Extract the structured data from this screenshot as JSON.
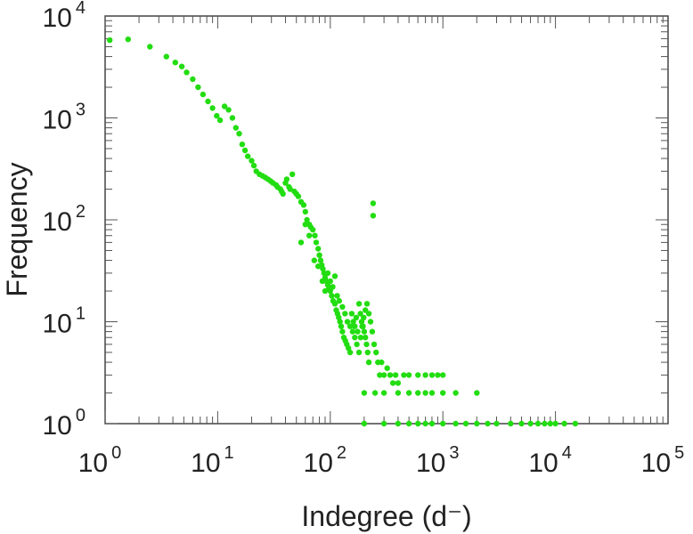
{
  "chart_data": {
    "type": "scatter",
    "xlabel": "Indegree (d⁻)",
    "ylabel": "Frequency",
    "x_scale": "log",
    "y_scale": "log",
    "xlim": [
      1,
      100000
    ],
    "ylim": [
      1,
      10000
    ],
    "x_ticks": [
      {
        "base": "10",
        "exp": "0",
        "value": 1
      },
      {
        "base": "10",
        "exp": "1",
        "value": 10
      },
      {
        "base": "10",
        "exp": "2",
        "value": 100
      },
      {
        "base": "10",
        "exp": "3",
        "value": 1000
      },
      {
        "base": "10",
        "exp": "4",
        "value": 10000
      },
      {
        "base": "10",
        "exp": "5",
        "value": 100000
      }
    ],
    "y_ticks": [
      {
        "base": "10",
        "exp": "0",
        "value": 1
      },
      {
        "base": "10",
        "exp": "1",
        "value": 10
      },
      {
        "base": "10",
        "exp": "2",
        "value": 100
      },
      {
        "base": "10",
        "exp": "3",
        "value": 1000
      },
      {
        "base": "10",
        "exp": "4",
        "value": 10000
      }
    ],
    "grid": false,
    "marker_color": "#22dd11",
    "series": [
      {
        "points": [
          [
            1.1,
            5800
          ],
          [
            1.6,
            5900
          ],
          [
            2.5,
            5000
          ],
          [
            3.5,
            4000
          ],
          [
            4.2,
            3500
          ],
          [
            4.8,
            3200
          ],
          [
            5.3,
            2800
          ],
          [
            6,
            2400
          ],
          [
            6.7,
            2000
          ],
          [
            7.4,
            1700
          ],
          [
            8.2,
            1450
          ],
          [
            9,
            1250
          ],
          [
            9.8,
            1050
          ],
          [
            10.5,
            950
          ],
          [
            11.5,
            1300
          ],
          [
            12.5,
            1200
          ],
          [
            13.5,
            1000
          ],
          [
            14.5,
            800
          ],
          [
            15.5,
            700
          ],
          [
            16.5,
            550
          ],
          [
            17.5,
            480
          ],
          [
            18.5,
            420
          ],
          [
            20,
            380
          ],
          [
            21,
            340
          ],
          [
            22,
            300
          ],
          [
            23.5,
            280
          ],
          [
            25,
            270
          ],
          [
            26.5,
            260
          ],
          [
            28,
            250
          ],
          [
            29.5,
            240
          ],
          [
            31,
            230
          ],
          [
            33,
            220
          ],
          [
            34,
            210
          ],
          [
            36,
            200
          ],
          [
            37,
            190
          ],
          [
            38,
            180
          ],
          [
            40,
            230
          ],
          [
            41,
            250
          ],
          [
            43,
            210
          ],
          [
            44,
            200
          ],
          [
            46,
            280
          ],
          [
            48,
            190
          ],
          [
            50,
            180
          ],
          [
            52,
            170
          ],
          [
            55,
            150
          ],
          [
            58,
            140
          ],
          [
            60,
            120
          ],
          [
            62,
            100
          ],
          [
            65,
            90
          ],
          [
            67,
            85
          ],
          [
            70,
            80
          ],
          [
            73,
            70
          ],
          [
            75,
            60
          ],
          [
            78,
            52
          ],
          [
            80,
            45
          ],
          [
            82,
            40
          ],
          [
            84,
            36
          ],
          [
            86,
            33
          ],
          [
            88,
            30
          ],
          [
            90,
            27
          ],
          [
            92,
            25
          ],
          [
            95,
            23
          ],
          [
            97,
            21
          ],
          [
            100,
            20
          ],
          [
            103,
            18
          ],
          [
            106,
            16
          ],
          [
            110,
            15
          ],
          [
            113,
            13
          ],
          [
            116,
            12
          ],
          [
            119,
            11
          ],
          [
            122,
            10
          ],
          [
            125,
            9
          ],
          [
            128,
            8
          ],
          [
            132,
            7
          ],
          [
            136,
            6.5
          ],
          [
            140,
            6
          ],
          [
            145,
            5.5
          ],
          [
            150,
            5
          ],
          [
            155,
            12
          ],
          [
            160,
            10
          ],
          [
            165,
            9
          ],
          [
            170,
            11
          ],
          [
            175,
            8
          ],
          [
            180,
            15
          ],
          [
            185,
            12
          ],
          [
            190,
            10
          ],
          [
            195,
            9
          ],
          [
            200,
            8
          ],
          [
            205,
            7
          ],
          [
            210,
            6
          ],
          [
            215,
            5
          ],
          [
            220,
            4
          ],
          [
            55,
            60
          ],
          [
            60,
            90
          ],
          [
            65,
            70
          ],
          [
            72,
            40
          ],
          [
            78,
            35
          ],
          [
            85,
            25
          ],
          [
            90,
            20
          ],
          [
            95,
            30
          ],
          [
            100,
            25
          ],
          [
            105,
            22
          ],
          [
            110,
            28
          ],
          [
            115,
            18
          ],
          [
            120,
            16
          ],
          [
            128,
            14
          ],
          [
            135,
            12
          ],
          [
            142,
            10
          ],
          [
            150,
            9
          ],
          [
            158,
            8
          ],
          [
            165,
            7
          ],
          [
            172,
            6
          ],
          [
            180,
            5
          ],
          [
            186,
            7
          ],
          [
            192,
            9
          ],
          [
            198,
            11
          ],
          [
            205,
            13
          ],
          [
            212,
            15
          ],
          [
            220,
            12
          ],
          [
            228,
            10
          ],
          [
            236,
            8
          ],
          [
            245,
            6
          ],
          [
            255,
            5
          ],
          [
            265,
            4
          ],
          [
            275,
            3
          ],
          [
            285,
            4
          ],
          [
            300,
            3
          ],
          [
            320,
            3.5
          ],
          [
            340,
            3
          ],
          [
            360,
            2.5
          ],
          [
            380,
            3
          ],
          [
            400,
            2.5
          ],
          [
            450,
            3
          ],
          [
            500,
            3
          ],
          [
            600,
            3
          ],
          [
            700,
            3
          ],
          [
            800,
            3
          ],
          [
            900,
            3
          ],
          [
            1000,
            3
          ],
          [
            240,
            145
          ],
          [
            240,
            110
          ],
          [
            200,
            2
          ],
          [
            250,
            2
          ],
          [
            300,
            2
          ],
          [
            400,
            2
          ],
          [
            500,
            2
          ],
          [
            600,
            2
          ],
          [
            700,
            2
          ],
          [
            800,
            2
          ],
          [
            1000,
            2
          ],
          [
            1300,
            2
          ],
          [
            2000,
            2
          ],
          [
            200,
            1
          ],
          [
            300,
            1
          ],
          [
            400,
            1
          ],
          [
            500,
            1
          ],
          [
            600,
            1
          ],
          [
            700,
            1
          ],
          [
            800,
            1
          ],
          [
            1000,
            1
          ],
          [
            1300,
            1
          ],
          [
            1600,
            1
          ],
          [
            2000,
            1
          ],
          [
            2500,
            1
          ],
          [
            3000,
            1
          ],
          [
            4000,
            1
          ],
          [
            5000,
            1
          ],
          [
            6000,
            1
          ],
          [
            7000,
            1
          ],
          [
            8000,
            1
          ],
          [
            9000,
            1
          ],
          [
            10000,
            1
          ],
          [
            12000,
            1
          ],
          [
            15000,
            1
          ]
        ]
      }
    ]
  }
}
